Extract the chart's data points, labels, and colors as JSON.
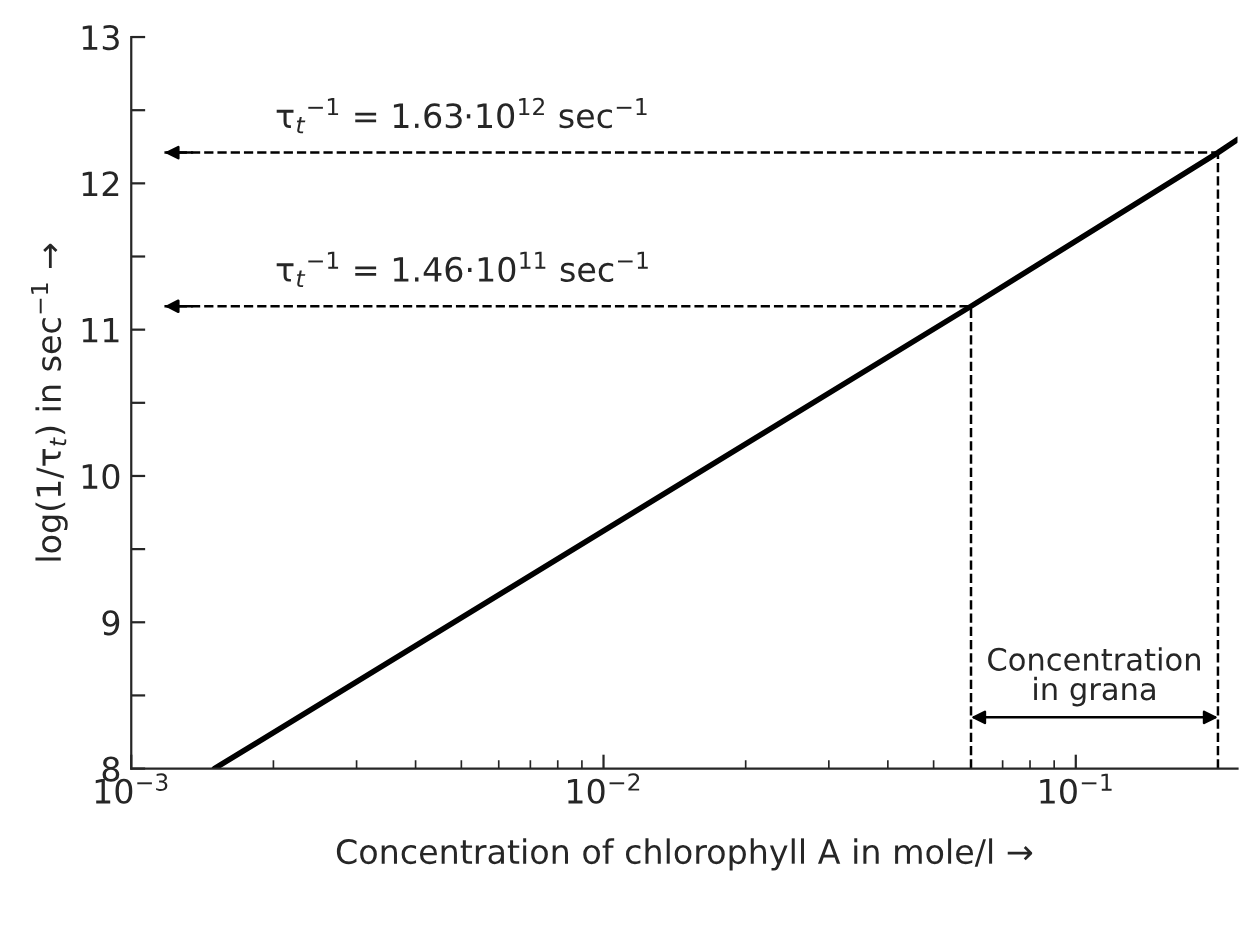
{
  "chart_data": {
    "type": "line",
    "xlabel": "Concentration of chlorophyll A in mole/l →",
    "ylabel": "log(1/τ$_{t}$) in sec$^{−1}$ →",
    "x": [
      0.0015,
      0.06,
      0.2,
      0.22
    ],
    "series": [
      {
        "color": "#000000",
        "values": [
          8,
          11.16,
          12.21,
          12.3
        ]
      }
    ],
    "log": "x",
    "xlim": [
      0.001,
      0.22
    ],
    "xticks": [
      {
        "value": 0.001,
        "label": "10$^{−3}$"
      },
      {
        "value": 0.01,
        "label": "10$^{−2}$"
      },
      {
        "value": 0.1,
        "label": "10$^{−1}$"
      }
    ],
    "ylim": [
      8,
      13
    ],
    "yticks": [
      8,
      {
        "value": 8.5,
        "label": null
      },
      9,
      {
        "value": 9.5,
        "label": null
      },
      10,
      {
        "value": 10.5,
        "label": null
      },
      11,
      {
        "value": 11.5,
        "label": null
      },
      12,
      {
        "value": 12.5,
        "label": null
      },
      13
    ],
    "ref_lines": [
      {
        "axis": "y",
        "value": 11.16,
        "label": "τ$_{t}$$^{−1}$ = 1.46·10$^{11}$ sec$^{−1}$",
        "color": "#000000",
        "line_style": "dashed"
      },
      {
        "axis": "y",
        "value": 12.21,
        "label": "τ$_{t}$$^{−1}$ = 1.63·10$^{12}$ sec$^{−1}$",
        "color": "#000000",
        "line_style": "dashed"
      },
      {
        "axis": "x",
        "value": 0.06,
        "color": "#000000",
        "line_style": "dashed"
      },
      {
        "axis": "x",
        "value": 0.2,
        "color": "#000000",
        "line_style": "dashed"
      }
    ],
    "annotations": [
      "Concentration\nin grana"
    ],
    "grid": false,
    "legend": false,
    "marker": "none",
    "line_style": "solid"
  }
}
